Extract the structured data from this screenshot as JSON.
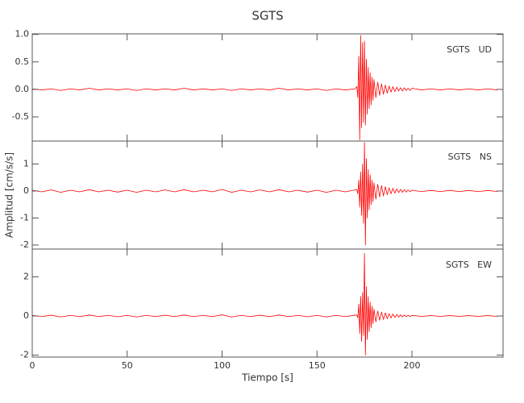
{
  "chart_data": [
    {
      "type": "line",
      "title": "SGTS",
      "label": "SGTS   UD",
      "color": "#ff0000",
      "xlim": [
        0,
        248
      ],
      "xticks": [
        0,
        50,
        100,
        150,
        200
      ],
      "ylim": [
        -0.94,
        1.01
      ],
      "yticks": [
        {
          "value": 1,
          "label": "1.0"
        },
        0.5,
        {
          "value": 0,
          "label": "0.0"
        },
        -0.5
      ],
      "x": [
        0,
        5,
        10,
        15,
        20,
        25,
        30,
        35,
        40,
        45,
        50,
        55,
        60,
        65,
        70,
        75,
        80,
        85,
        90,
        95,
        100,
        105,
        110,
        115,
        120,
        125,
        130,
        135,
        140,
        145,
        150,
        155,
        160,
        165,
        170,
        171,
        171.5,
        172,
        172.5,
        173,
        173.5,
        174,
        174.5,
        175,
        175.5,
        176,
        176.5,
        177,
        177.5,
        178,
        178.5,
        179,
        179.5,
        180,
        181,
        182,
        183,
        184,
        185,
        186,
        187,
        188,
        189,
        190,
        191,
        192,
        193,
        194,
        195,
        196,
        197,
        198,
        199,
        200,
        205,
        210,
        215,
        220,
        225,
        230,
        235,
        240,
        245
      ],
      "values": [
        0.01,
        -0.01,
        0.01,
        -0.02,
        0.01,
        -0.01,
        0.02,
        -0.01,
        0.01,
        -0.01,
        0.01,
        -0.02,
        0.01,
        -0.01,
        0.01,
        -0.01,
        0.02,
        -0.01,
        0.01,
        -0.01,
        0.01,
        -0.02,
        0.01,
        -0.01,
        0.01,
        -0.01,
        0.02,
        -0.01,
        0.01,
        -0.01,
        0.01,
        -0.02,
        0.01,
        -0.01,
        0.01,
        0.05,
        -0.15,
        0.6,
        -0.92,
        0.98,
        -0.7,
        0.85,
        -0.6,
        0.88,
        -0.65,
        0.55,
        -0.45,
        0.4,
        -0.35,
        0.3,
        -0.28,
        0.22,
        -0.2,
        0.18,
        -0.15,
        0.13,
        -0.11,
        0.1,
        -0.09,
        0.08,
        -0.07,
        0.06,
        -0.05,
        0.05,
        -0.04,
        0.04,
        -0.03,
        0.03,
        -0.03,
        0.03,
        -0.02,
        0.02,
        -0.02,
        0.02,
        -0.01,
        0.01,
        -0.01,
        0.01,
        -0.01,
        0.01,
        -0.01,
        0.01,
        -0.01
      ]
    },
    {
      "type": "line",
      "label": "SGTS   NS",
      "ylabel": "Amplitud [cm/s/s]",
      "color": "#ff0000",
      "xlim": [
        0,
        248
      ],
      "xticks": [
        0,
        50,
        100,
        150,
        200
      ],
      "ylim": [
        -2.15,
        1.85
      ],
      "yticks": [
        1,
        0,
        -1,
        -2
      ],
      "x": [
        0,
        5,
        10,
        15,
        20,
        25,
        30,
        35,
        40,
        45,
        50,
        55,
        60,
        65,
        70,
        75,
        80,
        85,
        90,
        95,
        100,
        105,
        110,
        115,
        120,
        125,
        130,
        135,
        140,
        145,
        150,
        155,
        160,
        165,
        170,
        171,
        171.5,
        172,
        172.5,
        173,
        173.5,
        174,
        174.5,
        175,
        175.5,
        176,
        176.5,
        177,
        177.5,
        178,
        178.5,
        179,
        179.5,
        180,
        181,
        182,
        183,
        184,
        185,
        186,
        187,
        188,
        189,
        190,
        191,
        192,
        193,
        194,
        195,
        196,
        197,
        198,
        199,
        200,
        205,
        210,
        215,
        220,
        225,
        230,
        235,
        240,
        245
      ],
      "values": [
        0.03,
        -0.03,
        0.04,
        -0.05,
        0.03,
        -0.03,
        0.05,
        -0.03,
        0.03,
        -0.04,
        0.03,
        -0.05,
        0.03,
        -0.03,
        0.04,
        -0.03,
        0.05,
        -0.03,
        0.03,
        -0.03,
        0.06,
        -0.05,
        0.03,
        -0.03,
        0.04,
        -0.03,
        0.05,
        -0.03,
        0.03,
        -0.04,
        0.03,
        -0.05,
        0.03,
        -0.03,
        0.04,
        0.05,
        -0.1,
        0.4,
        -0.6,
        0.7,
        -0.9,
        1.0,
        -1.2,
        1.8,
        -2.0,
        1.2,
        -1.0,
        0.8,
        -0.7,
        0.6,
        -0.5,
        0.4,
        -0.4,
        0.3,
        -0.3,
        0.25,
        -0.22,
        0.2,
        -0.18,
        0.16,
        -0.14,
        0.12,
        -0.1,
        0.1,
        -0.08,
        0.08,
        -0.06,
        0.06,
        -0.05,
        0.05,
        -0.04,
        0.04,
        -0.03,
        0.03,
        -0.02,
        0.02,
        -0.02,
        0.02,
        -0.02,
        0.02,
        -0.02,
        0.02,
        -0.02
      ]
    },
    {
      "type": "line",
      "label": "SGTS   EW",
      "xlabel": "Tiempo [s]",
      "color": "#ff0000",
      "xlim": [
        0,
        248
      ],
      "xticks": [
        0,
        50,
        100,
        150,
        200
      ],
      "ylim": [
        -2.1,
        3.42
      ],
      "yticks": [
        2,
        0,
        -2
      ],
      "x": [
        0,
        5,
        10,
        15,
        20,
        25,
        30,
        35,
        40,
        45,
        50,
        55,
        60,
        65,
        70,
        75,
        80,
        85,
        90,
        95,
        100,
        105,
        110,
        115,
        120,
        125,
        130,
        135,
        140,
        145,
        150,
        155,
        160,
        165,
        170,
        171,
        171.5,
        172,
        172.5,
        173,
        173.5,
        174,
        174.5,
        175,
        175.5,
        176,
        176.5,
        177,
        177.5,
        178,
        178.5,
        179,
        179.5,
        180,
        181,
        182,
        183,
        184,
        185,
        186,
        187,
        188,
        189,
        190,
        191,
        192,
        193,
        194,
        195,
        196,
        197,
        198,
        199,
        200,
        205,
        210,
        215,
        220,
        225,
        230,
        235,
        240,
        245
      ],
      "values": [
        0.03,
        -0.03,
        0.04,
        -0.05,
        0.03,
        -0.03,
        0.05,
        -0.03,
        0.03,
        -0.04,
        0.03,
        -0.05,
        0.03,
        -0.03,
        0.04,
        -0.03,
        0.05,
        -0.03,
        0.03,
        -0.03,
        0.06,
        -0.05,
        0.03,
        -0.03,
        0.04,
        -0.03,
        0.05,
        -0.03,
        0.03,
        -0.04,
        0.03,
        -0.05,
        0.03,
        -0.03,
        0.04,
        0.05,
        -0.1,
        0.6,
        -0.9,
        1.0,
        -1.3,
        1.2,
        -1.0,
        3.2,
        -2.0,
        1.5,
        -1.2,
        1.0,
        -0.8,
        0.7,
        -0.6,
        0.5,
        -0.4,
        0.35,
        -0.3,
        0.25,
        -0.22,
        0.2,
        -0.18,
        0.16,
        -0.14,
        0.12,
        -0.1,
        0.1,
        -0.08,
        0.08,
        -0.06,
        0.06,
        -0.05,
        0.05,
        -0.04,
        0.04,
        -0.03,
        0.03,
        -0.02,
        0.02,
        -0.02,
        0.02,
        -0.02,
        0.02,
        -0.02,
        0.02,
        -0.02
      ]
    }
  ]
}
